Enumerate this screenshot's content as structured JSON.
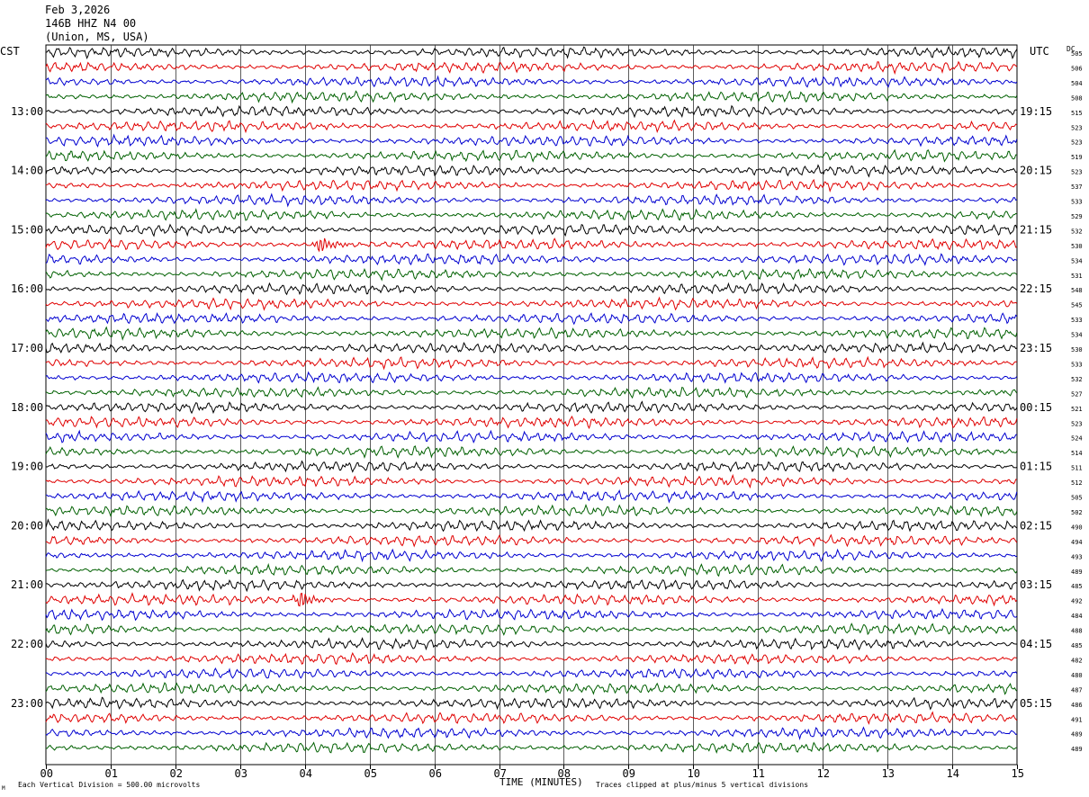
{
  "header": {
    "date": "Feb 3,2026",
    "station": "146B HHZ N4 00",
    "location": "(Union, MS, USA)"
  },
  "labels": {
    "left_timezone": "CST",
    "right_timezone": "UTC",
    "dc_header": "DC"
  },
  "footer": {
    "scale_note": "Each Vertical Division =  500.00 microvolts",
    "clip_note": "Traces clipped at plus/minus 5 vertical divisions",
    "corner_mark": "M"
  },
  "colors": {
    "black": "#000000",
    "red": "#e00000",
    "blue": "#0000d0",
    "green": "#006000",
    "grid": "#000000"
  },
  "chart_data": {
    "type": "line",
    "title": "146B HHZ N4 00",
    "xlabel": "TIME (MINUTES)",
    "ylabel": "",
    "xlim": [
      0,
      15
    ],
    "x_ticks": [
      "00",
      "01",
      "02",
      "03",
      "04",
      "05",
      "06",
      "07",
      "08",
      "09",
      "10",
      "11",
      "12",
      "13",
      "14",
      "15"
    ],
    "trace_minutes": 15,
    "trace_color_cycle": [
      "black",
      "red",
      "blue",
      "green"
    ],
    "left_hour_labels": [
      "13:00",
      "14:00",
      "15:00",
      "16:00",
      "17:00",
      "18:00",
      "19:00",
      "20:00",
      "21:00",
      "22:00",
      "23:00"
    ],
    "right_hour_labels": [
      "19:15",
      "20:15",
      "21:15",
      "22:15",
      "23:15",
      "00:15",
      "01:15",
      "02:15",
      "03:15",
      "04:15",
      "05:15"
    ],
    "dc_offsets": [
      505,
      506,
      504,
      508,
      515,
      523,
      523,
      519,
      523,
      537,
      533,
      529,
      532,
      530,
      534,
      531,
      548,
      545,
      533,
      534,
      530,
      533,
      532,
      527,
      521,
      523,
      524,
      514,
      511,
      512,
      505,
      502,
      490,
      494,
      493,
      489,
      485,
      492,
      484,
      488,
      485,
      482,
      480,
      487,
      486,
      491,
      489,
      489
    ],
    "events": [
      {
        "trace_index": 37,
        "minute": 3.9,
        "description": ""
      },
      {
        "trace_index": 13,
        "minute": 4.2,
        "description": ""
      }
    ]
  }
}
